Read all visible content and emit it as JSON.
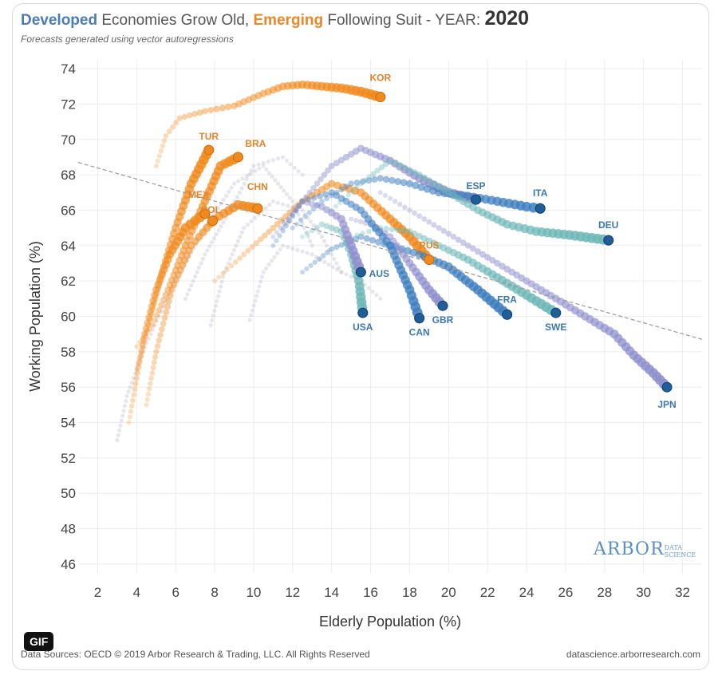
{
  "title": {
    "developed": "Developed",
    "part1": " Economies Grow Old, ",
    "emerging": "Emerging",
    "part2": " Following Suit - YEAR: ",
    "year": "2020"
  },
  "subtitle": "Forecasts generated using vector autoregressions",
  "footer": {
    "source": "Data Sources: OECD © 2019 Arbor Research & Trading, LLC. All Rights Reserved",
    "url": "datascience.arborresearch.com"
  },
  "gif_badge": "GIF",
  "logo": {
    "main": "ARBOR",
    "sub1": "DATA",
    "sub2": "SCIENCE"
  },
  "colors": {
    "developed": "#3f7fbf",
    "developed_dark": "#1f5e96",
    "emerging": "#f08a1e",
    "trail_purple": "#8f8fce",
    "trail_teal": "#6fb7b7",
    "trendline": "#999999",
    "grid": "#ececec"
  },
  "chart_data": {
    "type": "scatter",
    "xlabel": "Elderly Population (%)",
    "ylabel": "Working Population (%)",
    "xlim": [
      1.0,
      33.0
    ],
    "ylim": [
      45.5,
      74.5
    ],
    "xticks": [
      2,
      4,
      6,
      8,
      10,
      12,
      14,
      16,
      18,
      20,
      22,
      24,
      26,
      28,
      30,
      32
    ],
    "yticks": [
      46,
      48,
      50,
      52,
      54,
      56,
      58,
      60,
      62,
      64,
      66,
      68,
      70,
      72,
      74
    ],
    "grid": true,
    "trendline": {
      "x": [
        1.0,
        33.0
      ],
      "y": [
        68.7,
        58.7
      ]
    },
    "current_points": [
      {
        "label": "KOR",
        "group": "emerging",
        "x": 16.5,
        "y": 72.4
      },
      {
        "label": "TUR",
        "group": "emerging",
        "x": 7.7,
        "y": 69.4
      },
      {
        "label": "BRA",
        "group": "emerging",
        "x": 9.2,
        "y": 69.0
      },
      {
        "label": "MEX",
        "group": "emerging",
        "x": 7.5,
        "y": 65.8
      },
      {
        "label": "POL",
        "group": "emerging",
        "x": 7.9,
        "y": 65.4
      },
      {
        "label": "CHN",
        "group": "emerging",
        "x": 10.2,
        "y": 66.1
      },
      {
        "label": "RUS",
        "group": "emerging",
        "x": 19.0,
        "y": 63.2
      },
      {
        "label": "ESP",
        "group": "developed",
        "x": 21.4,
        "y": 66.6
      },
      {
        "label": "ITA",
        "group": "developed",
        "x": 24.7,
        "y": 66.1
      },
      {
        "label": "DEU",
        "group": "developed",
        "x": 28.2,
        "y": 64.3
      },
      {
        "label": "AUS",
        "group": "developed",
        "x": 15.5,
        "y": 62.5
      },
      {
        "label": "USA",
        "group": "developed",
        "x": 15.6,
        "y": 60.2
      },
      {
        "label": "CAN",
        "group": "developed",
        "x": 18.5,
        "y": 59.9
      },
      {
        "label": "GBR",
        "group": "developed",
        "x": 19.7,
        "y": 60.6
      },
      {
        "label": "FRA",
        "group": "developed",
        "x": 23.0,
        "y": 60.1
      },
      {
        "label": "SWE",
        "group": "developed",
        "x": 25.5,
        "y": 60.2
      },
      {
        "label": "JPN",
        "group": "developed",
        "x": 31.2,
        "y": 56.0
      }
    ],
    "trails": [
      {
        "label": "KOR",
        "group": "emerging",
        "x": [
          5.0,
          5.5,
          6.2,
          7.5,
          9.0,
          10.5,
          11.5,
          12.5,
          13.5,
          14.5,
          15.5,
          16.5
        ],
        "y": [
          68.5,
          70.2,
          71.2,
          71.6,
          71.9,
          72.6,
          73.0,
          73.1,
          73.0,
          72.9,
          72.7,
          72.4
        ]
      },
      {
        "label": "TUR",
        "group": "emerging",
        "x": [
          4.0,
          4.6,
          5.3,
          6.0,
          6.8,
          7.7
        ],
        "y": [
          57.0,
          59.5,
          62.5,
          65.0,
          67.5,
          69.4
        ]
      },
      {
        "label": "BRA",
        "group": "emerging",
        "x": [
          4.0,
          4.8,
          5.6,
          6.5,
          7.5,
          8.3,
          9.2
        ],
        "y": [
          58.3,
          59.5,
          61.5,
          64.0,
          66.5,
          68.5,
          69.0
        ]
      },
      {
        "label": "MEX",
        "group": "emerging",
        "x": [
          3.6,
          4.0,
          4.4,
          5.0,
          5.7,
          6.5,
          7.5
        ],
        "y": [
          54.0,
          56.5,
          59.0,
          61.5,
          63.5,
          65.0,
          65.8
        ]
      },
      {
        "label": "CHN",
        "group": "emerging",
        "x": [
          4.5,
          5.0,
          5.8,
          6.8,
          8.0,
          9.2,
          10.2
        ],
        "y": [
          55.0,
          58.0,
          61.5,
          64.0,
          65.5,
          66.3,
          66.1
        ]
      },
      {
        "label": "RUS",
        "group": "emerging",
        "x": [
          8.0,
          9.5,
          11.0,
          12.5,
          14.0,
          15.5,
          17.0,
          18.0,
          19.0
        ],
        "y": [
          62.0,
          63.5,
          65.0,
          66.5,
          67.5,
          67.0,
          65.5,
          64.5,
          63.2
        ]
      },
      {
        "label": "ESP",
        "group": "developed",
        "x": [
          11.0,
          12.5,
          14.0,
          15.5,
          17.0,
          18.5,
          20.0,
          21.4
        ],
        "y": [
          64.5,
          66.5,
          68.5,
          69.5,
          68.8,
          67.8,
          67.0,
          66.6
        ]
      },
      {
        "label": "ITA",
        "group": "developed",
        "x": [
          12.0,
          13.5,
          15.0,
          16.5,
          18.0,
          19.5,
          21.0,
          22.5,
          24.0,
          24.7
        ],
        "y": [
          65.0,
          66.5,
          67.5,
          67.8,
          67.5,
          67.0,
          66.8,
          66.5,
          66.2,
          66.1
        ]
      },
      {
        "label": "DEU",
        "group": "developed",
        "x": [
          14.0,
          15.5,
          17.0,
          18.5,
          20.0,
          21.5,
          23.0,
          24.5,
          26.2,
          28.2
        ],
        "y": [
          66.0,
          67.5,
          68.8,
          68.0,
          67.0,
          66.0,
          65.2,
          64.8,
          64.6,
          64.3
        ]
      },
      {
        "label": "JPN",
        "group": "developed",
        "x": [
          16.5,
          18.0,
          19.5,
          21.0,
          22.5,
          24.0,
          25.5,
          27.0,
          28.5,
          29.5,
          30.5,
          31.2
        ],
        "y": [
          67.0,
          66.0,
          65.0,
          64.0,
          63.0,
          62.0,
          61.0,
          60.0,
          59.0,
          57.8,
          56.8,
          56.0
        ]
      },
      {
        "label": "FRA",
        "group": "developed",
        "x": [
          12.5,
          14.0,
          15.5,
          17.0,
          18.5,
          20.0,
          21.5,
          23.0
        ],
        "y": [
          62.5,
          63.8,
          64.5,
          64.0,
          63.5,
          62.8,
          61.5,
          60.1
        ]
      },
      {
        "label": "SWE",
        "group": "developed",
        "x": [
          15.0,
          16.5,
          18.0,
          19.5,
          21.0,
          22.5,
          24.0,
          25.5
        ],
        "y": [
          64.5,
          65.0,
          64.8,
          64.0,
          63.2,
          62.2,
          61.2,
          60.2
        ]
      },
      {
        "label": "GBR",
        "group": "developed",
        "x": [
          15.0,
          16.0,
          17.0,
          18.0,
          19.0,
          19.7
        ],
        "y": [
          65.5,
          65.2,
          64.5,
          63.0,
          61.5,
          60.6
        ]
      },
      {
        "label": "CAN",
        "group": "developed",
        "x": [
          11.0,
          12.5,
          14.0,
          15.5,
          17.0,
          18.0,
          18.5
        ],
        "y": [
          64.0,
          66.5,
          67.0,
          66.0,
          64.0,
          61.5,
          59.9
        ]
      },
      {
        "label": "USA",
        "group": "developed",
        "x": [
          12.5,
          13.5,
          14.5,
          15.0,
          15.4,
          15.6
        ],
        "y": [
          64.5,
          65.2,
          64.8,
          63.5,
          62.0,
          60.2
        ]
      },
      {
        "label": "AUS",
        "group": "developed",
        "x": [
          11.5,
          12.5,
          13.5,
          14.5,
          15.0,
          15.5
        ],
        "y": [
          65.0,
          66.5,
          66.2,
          65.5,
          64.0,
          62.5
        ]
      }
    ],
    "faint_trails": [
      {
        "x": [
          3.0,
          3.5,
          4.5,
          6.0,
          7.5,
          9.0,
          10.5,
          12.0,
          13.0
        ],
        "y": [
          53.0,
          55.5,
          58.5,
          62.0,
          65.0,
          67.5,
          68.5,
          66.5,
          64.0
        ]
      },
      {
        "x": [
          7.8,
          8.5,
          9.5,
          11.0,
          12.5,
          13.5,
          14.5
        ],
        "y": [
          59.5,
          62.5,
          65.0,
          66.5,
          66.0,
          64.5,
          62.5
        ]
      },
      {
        "x": [
          9.8,
          10.5,
          11.5,
          13.0,
          14.5,
          15.5,
          16.5
        ],
        "y": [
          59.8,
          62.5,
          64.0,
          63.5,
          62.5,
          62.0,
          61.0
        ]
      },
      {
        "x": [
          6.5,
          7.5,
          8.8,
          10.0,
          11.5,
          12.5
        ],
        "y": [
          61.0,
          63.5,
          66.0,
          68.5,
          69.0,
          68.0
        ]
      }
    ]
  }
}
